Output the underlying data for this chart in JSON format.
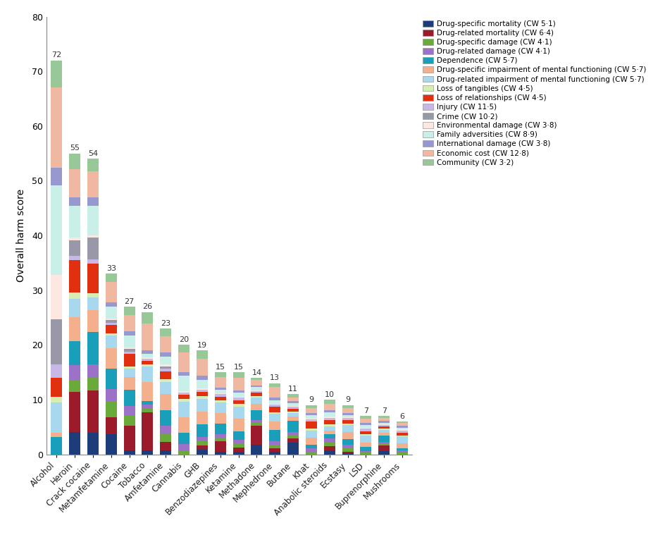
{
  "drugs": [
    "Alcohol",
    "Heroin",
    "Crack cocaine",
    "Metamfetamine",
    "Cocaine",
    "Tobacco",
    "Amfetamine",
    "Cannabis",
    "GHB",
    "Benzodiazepines",
    "Ketamine",
    "Methadone",
    "Mephedrone",
    "Butane",
    "Khat",
    "Anabolic steroids",
    "Ecstasy",
    "LSD",
    "Buprenorphine",
    "Mushrooms"
  ],
  "totals": [
    72,
    55,
    54,
    33,
    27,
    26,
    23,
    20,
    19,
    15,
    15,
    14,
    13,
    11,
    9,
    10,
    9,
    7,
    7,
    6
  ],
  "categories": [
    "Drug-specific mortality (CW 5·1)",
    "Drug-related mortality (CW 6·4)",
    "Drug-specific damage (CW 4·1)",
    "Drug-related damage (CW 4·1)",
    "Dependence (CW 5·7)",
    "Drug-specific impairment of mental functioning (CW 5·7)",
    "Drug-related impairment of mental functioning (CW 5·7)",
    "Loss of tangibles (CW 4·5)",
    "Loss of relationships (CW 4·5)",
    "Injury (CW 11·5)",
    "Crime (CW 10·2)",
    "Environmental damage (CW 3·8)",
    "Family adversities (CW 8·9)",
    "International damage (CW 3·8)",
    "Economic cost (CW 12·8)",
    "Community (CW 3·2)"
  ],
  "colors": [
    "#1c3d7a",
    "#9b1b2a",
    "#6aaa3a",
    "#9b72c8",
    "#1a9fba",
    "#f4b08c",
    "#a8d8ee",
    "#d8edb0",
    "#e03010",
    "#c8b8e8",
    "#9898a8",
    "#fce8e0",
    "#c8f0e8",
    "#9898d0",
    "#f0b8a0",
    "#98c898"
  ],
  "segments": {
    "Alcohol": [
      0.0,
      0.0,
      0.0,
      0.0,
      1.9,
      0.5,
      3.4,
      0.6,
      2.2,
      1.5,
      5.0,
      5.0,
      10.0,
      2.0,
      9.0,
      3.0
    ],
    "Heroin": [
      2.8,
      5.0,
      1.5,
      1.8,
      3.0,
      3.0,
      2.3,
      0.8,
      4.0,
      0.5,
      2.0,
      0.3,
      4.0,
      1.0,
      3.5,
      2.0
    ],
    "Crack cocaine": [
      2.5,
      5.0,
      1.5,
      1.6,
      3.8,
      2.6,
      1.5,
      0.5,
      3.5,
      0.5,
      2.5,
      0.3,
      3.5,
      1.0,
      3.0,
      1.5
    ],
    "Metamfetamine": [
      2.5,
      2.0,
      2.0,
      1.5,
      2.5,
      2.5,
      1.5,
      0.3,
      1.0,
      0.3,
      0.3,
      0.2,
      1.5,
      0.5,
      2.5,
      1.0
    ],
    "Cocaine": [
      0.5,
      3.0,
      1.2,
      1.2,
      2.0,
      1.5,
      1.0,
      0.3,
      1.5,
      0.3,
      0.3,
      0.2,
      1.5,
      0.5,
      2.0,
      1.0
    ],
    "Tobacco": [
      0.5,
      5.0,
      0.5,
      0.5,
      0.5,
      2.5,
      2.0,
      0.3,
      0.5,
      0.3,
      0.0,
      0.1,
      0.5,
      0.5,
      3.5,
      1.5
    ],
    "Amfetamine": [
      0.5,
      1.0,
      1.0,
      1.0,
      2.0,
      2.0,
      1.5,
      0.3,
      1.0,
      0.3,
      0.3,
      0.2,
      1.0,
      0.5,
      2.0,
      1.0
    ],
    "Cannabis": [
      0.0,
      0.0,
      0.5,
      0.8,
      1.5,
      2.0,
      2.0,
      0.4,
      0.5,
      0.3,
      0.0,
      0.2,
      2.0,
      0.5,
      2.5,
      1.0
    ],
    "GHB": [
      0.5,
      0.5,
      0.5,
      0.5,
      1.5,
      1.5,
      1.5,
      0.3,
      0.5,
      0.3,
      0.0,
      0.1,
      1.0,
      0.5,
      2.0,
      1.0
    ],
    "Benzodiazepines": [
      0.3,
      1.5,
      0.5,
      0.5,
      1.5,
      1.5,
      1.5,
      0.3,
      0.5,
      0.3,
      0.0,
      0.1,
      0.5,
      0.3,
      1.5,
      0.7
    ],
    "Ketamine": [
      0.3,
      0.5,
      0.5,
      0.5,
      1.0,
      1.5,
      1.5,
      0.3,
      0.5,
      0.3,
      0.0,
      0.1,
      0.5,
      0.3,
      1.5,
      0.7
    ],
    "Methadone": [
      1.5,
      3.0,
      0.5,
      0.5,
      1.5,
      1.0,
      1.0,
      0.3,
      0.5,
      0.3,
      0.0,
      0.1,
      0.5,
      0.3,
      0.8,
      0.4
    ],
    "Mephedrone": [
      0.3,
      0.5,
      0.5,
      0.5,
      1.5,
      1.2,
      1.0,
      0.2,
      0.8,
      0.3,
      0.0,
      0.1,
      0.5,
      0.3,
      1.5,
      0.5
    ],
    "Butane": [
      1.5,
      0.5,
      0.5,
      0.3,
      1.5,
      0.5,
      0.5,
      0.2,
      0.3,
      0.3,
      0.0,
      0.1,
      0.3,
      0.3,
      0.5,
      0.4
    ],
    "Khat": [
      0.0,
      0.0,
      0.3,
      0.5,
      0.5,
      1.0,
      1.0,
      0.3,
      1.0,
      0.3,
      0.0,
      0.1,
      0.5,
      0.3,
      0.7,
      0.4
    ],
    "Anabolic steroids": [
      0.5,
      0.5,
      0.5,
      0.5,
      0.5,
      0.5,
      0.5,
      0.3,
      0.5,
      0.3,
      0.0,
      0.2,
      0.5,
      0.3,
      0.8,
      0.5
    ],
    "Ecstasy": [
      0.2,
      0.2,
      0.5,
      0.5,
      0.8,
      1.0,
      1.0,
      0.2,
      0.5,
      0.3,
      0.0,
      0.1,
      0.3,
      0.3,
      0.8,
      0.4
    ],
    "LSD": [
      0.0,
      0.0,
      0.2,
      0.2,
      0.5,
      0.5,
      0.8,
      0.2,
      0.3,
      0.3,
      0.0,
      0.1,
      0.3,
      0.3,
      0.5,
      0.3
    ],
    "Buprenorphine": [
      0.5,
      1.0,
      0.3,
      0.3,
      1.0,
      0.5,
      0.5,
      0.2,
      0.3,
      0.3,
      0.0,
      0.1,
      0.3,
      0.3,
      0.5,
      0.3
    ],
    "Mushrooms": [
      0.0,
      0.0,
      0.2,
      0.2,
      0.3,
      0.5,
      0.8,
      0.1,
      0.3,
      0.3,
      0.0,
      0.1,
      0.2,
      0.2,
      0.3,
      0.2
    ]
  },
  "ylabel": "Overall harm score",
  "ylim": [
    0,
    80
  ],
  "yticks": [
    0,
    10,
    20,
    30,
    40,
    50,
    60,
    70,
    80
  ],
  "figsize": [
    9.44,
    7.86
  ],
  "dpi": 100
}
